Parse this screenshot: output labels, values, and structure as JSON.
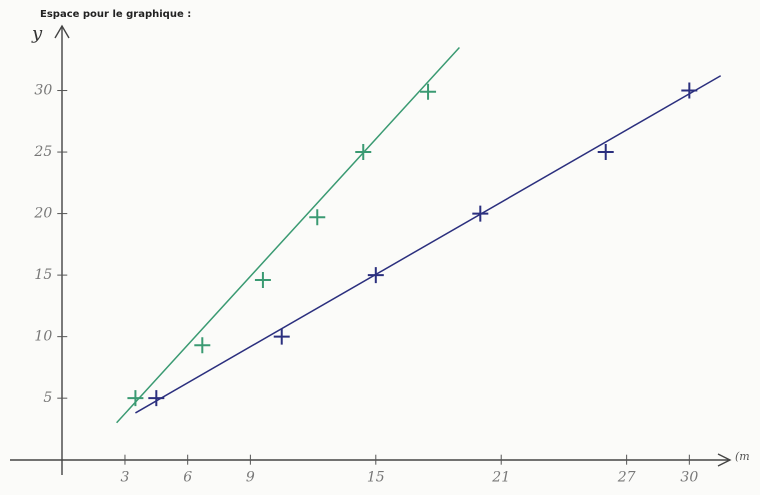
{
  "chart_data": {
    "type": "scatter",
    "title": "Espace pour le graphique :",
    "y_label": "y",
    "x_label": "(m",
    "xlim": [
      -2.5,
      32.4
    ],
    "ylim": [
      -1,
      35
    ],
    "xticks": [
      3,
      6,
      9,
      15,
      21,
      27,
      30
    ],
    "yticks": [
      5,
      10,
      15,
      20,
      25,
      30
    ],
    "series": [
      {
        "color": "#2b2f7e",
        "x": [
          4.5,
          10.5,
          15,
          20,
          26,
          30
        ],
        "values": [
          5,
          10,
          15,
          20,
          25,
          30
        ],
        "fit_x": [
          3.5,
          31.5
        ],
        "fit_y": [
          3.8,
          31.2
        ]
      },
      {
        "color": "#3a9a72",
        "x": [
          3.5,
          6.7,
          9.6,
          12.2,
          14.4,
          17.5
        ],
        "values": [
          5,
          9.3,
          14.6,
          19.7,
          25,
          29.9
        ],
        "fit_x": [
          2.6,
          19
        ],
        "fit_y": [
          3,
          33.5
        ]
      }
    ]
  }
}
